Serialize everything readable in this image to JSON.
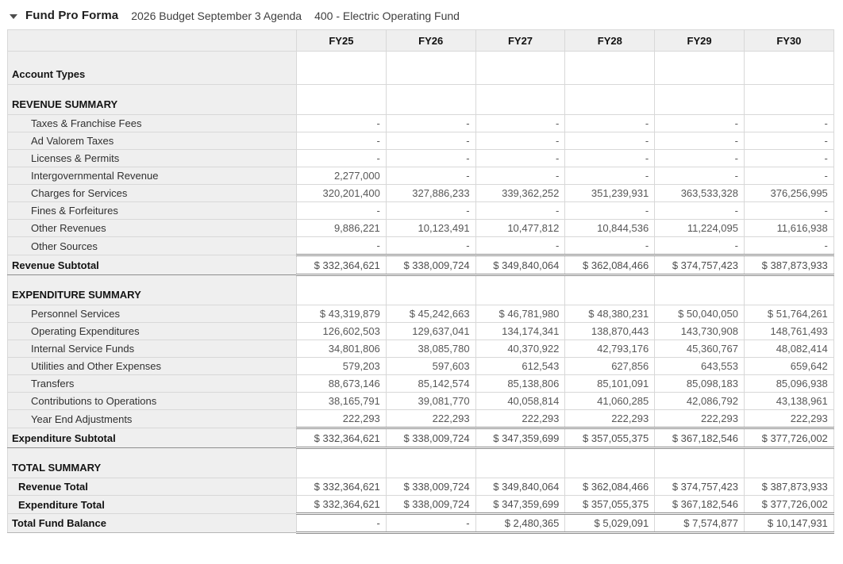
{
  "header": {
    "caret_icon": "collapse-caret",
    "title": "Fund Pro Forma",
    "subtitle_budget": "2026 Budget September 3 Agenda",
    "subtitle_fund": "400 - Electric Operating Fund"
  },
  "colors": {
    "header_bg": "#efefef",
    "label_col_bg": "#efefef",
    "grid_line": "#d8d8d8",
    "rule_line": "#8e8e8e",
    "value_text": "#575757",
    "label_text": "#303030"
  },
  "table": {
    "columns": [
      "FY25",
      "FY26",
      "FY27",
      "FY28",
      "FY29",
      "FY30"
    ],
    "rows": [
      {
        "type": "section-first",
        "label": "Account Types",
        "values": [
          "",
          "",
          "",
          "",
          "",
          ""
        ]
      },
      {
        "type": "section",
        "label": "REVENUE SUMMARY",
        "values": [
          "",
          "",
          "",
          "",
          "",
          ""
        ]
      },
      {
        "type": "item",
        "label": "Taxes & Franchise Fees",
        "values": [
          "-",
          "-",
          "-",
          "-",
          "-",
          "-"
        ]
      },
      {
        "type": "item",
        "label": "Ad Valorem Taxes",
        "values": [
          "-",
          "-",
          "-",
          "-",
          "-",
          "-"
        ]
      },
      {
        "type": "item",
        "label": "Licenses & Permits",
        "values": [
          "-",
          "-",
          "-",
          "-",
          "-",
          "-"
        ]
      },
      {
        "type": "item",
        "label": "Intergovernmental Revenue",
        "values": [
          "2,277,000",
          "-",
          "-",
          "-",
          "-",
          "-"
        ]
      },
      {
        "type": "item",
        "label": "Charges for Services",
        "values": [
          "320,201,400",
          "327,886,233",
          "339,362,252",
          "351,239,931",
          "363,533,328",
          "376,256,995"
        ]
      },
      {
        "type": "item",
        "label": "Fines & Forfeitures",
        "values": [
          "-",
          "-",
          "-",
          "-",
          "-",
          "-"
        ]
      },
      {
        "type": "item",
        "label": "Other Revenues",
        "values": [
          "9,886,221",
          "10,123,491",
          "10,477,812",
          "10,844,536",
          "11,224,095",
          "11,616,938"
        ]
      },
      {
        "type": "item",
        "label": "Other Sources",
        "values": [
          "-",
          "-",
          "-",
          "-",
          "-",
          "-"
        ]
      },
      {
        "type": "subtotal",
        "label": "Revenue Subtotal",
        "values": [
          "$ 332,364,621",
          "$ 338,009,724",
          "$ 349,840,064",
          "$ 362,084,466",
          "$ 374,757,423",
          "$ 387,873,933"
        ]
      },
      {
        "type": "section",
        "label": "EXPENDITURE SUMMARY",
        "values": [
          "",
          "",
          "",
          "",
          "",
          ""
        ]
      },
      {
        "type": "item",
        "label": "Personnel Services",
        "values": [
          "$ 43,319,879",
          "$ 45,242,663",
          "$ 46,781,980",
          "$ 48,380,231",
          "$ 50,040,050",
          "$ 51,764,261"
        ]
      },
      {
        "type": "item",
        "label": "Operating Expenditures",
        "values": [
          "126,602,503",
          "129,637,041",
          "134,174,341",
          "138,870,443",
          "143,730,908",
          "148,761,493"
        ]
      },
      {
        "type": "item",
        "label": "Internal Service Funds",
        "values": [
          "34,801,806",
          "38,085,780",
          "40,370,922",
          "42,793,176",
          "45,360,767",
          "48,082,414"
        ]
      },
      {
        "type": "item",
        "label": "Utilities and Other Expenses",
        "values": [
          "579,203",
          "597,603",
          "612,543",
          "627,856",
          "643,553",
          "659,642"
        ]
      },
      {
        "type": "item",
        "label": "Transfers",
        "values": [
          "88,673,146",
          "85,142,574",
          "85,138,806",
          "85,101,091",
          "85,098,183",
          "85,096,938"
        ]
      },
      {
        "type": "item",
        "label": "Contributions to Operations",
        "values": [
          "38,165,791",
          "39,081,770",
          "40,058,814",
          "41,060,285",
          "42,086,792",
          "43,138,961"
        ]
      },
      {
        "type": "item",
        "label": "Year End Adjustments",
        "values": [
          "222,293",
          "222,293",
          "222,293",
          "222,293",
          "222,293",
          "222,293"
        ]
      },
      {
        "type": "subtotal",
        "label": "Expenditure Subtotal",
        "values": [
          "$ 332,364,621",
          "$ 338,009,724",
          "$ 347,359,699",
          "$ 357,055,375",
          "$ 367,182,546",
          "$ 377,726,002"
        ]
      },
      {
        "type": "section",
        "label": "TOTAL SUMMARY",
        "values": [
          "",
          "",
          "",
          "",
          "",
          ""
        ]
      },
      {
        "type": "totalitem",
        "label": "Revenue Total",
        "values": [
          "$ 332,364,621",
          "$ 338,009,724",
          "$ 349,840,064",
          "$ 362,084,466",
          "$ 374,757,423",
          "$ 387,873,933"
        ]
      },
      {
        "type": "totalitem",
        "label": "Expenditure Total",
        "values": [
          "$ 332,364,621",
          "$ 338,009,724",
          "$ 347,359,699",
          "$ 357,055,375",
          "$ 367,182,546",
          "$ 377,726,002"
        ]
      },
      {
        "type": "grand",
        "label": "Total Fund Balance",
        "values": [
          "-",
          "-",
          "$ 2,480,365",
          "$ 5,029,091",
          "$ 7,574,877",
          "$ 10,147,931"
        ]
      }
    ]
  }
}
